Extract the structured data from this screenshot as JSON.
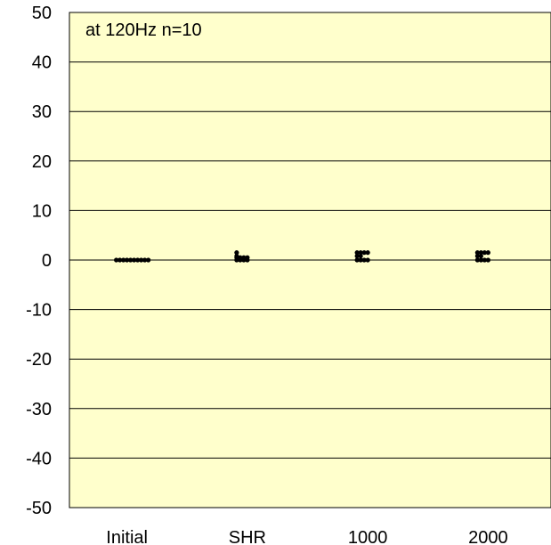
{
  "chart_data": {
    "type": "scatter",
    "title": "",
    "annotation": "at 120Hz   n=10",
    "xlabel": "",
    "ylabel": "",
    "categories": [
      "Initial",
      "SHR",
      "1000",
      "2000"
    ],
    "ylim": [
      -50,
      50
    ],
    "y_ticks": [
      50,
      40,
      30,
      20,
      10,
      0,
      -10,
      -20,
      -30,
      -40,
      -50
    ],
    "grid": true,
    "colors": {
      "plot_background": "#FFFFCC",
      "marker": "#000000",
      "grid": "#000000"
    },
    "points": [
      {
        "category": "Initial",
        "values": [
          0,
          0,
          0,
          0,
          0,
          0,
          0,
          0,
          0,
          0
        ]
      },
      {
        "category": "SHR",
        "values": [
          1.5,
          0.8,
          0.5,
          0.5,
          0.5,
          0,
          0,
          0,
          0,
          0.5
        ]
      },
      {
        "category": "1000",
        "values": [
          1.5,
          1.5,
          1.5,
          1.5,
          0.8,
          0.8,
          0,
          0,
          0,
          0
        ]
      },
      {
        "category": "2000",
        "values": [
          1.5,
          1.5,
          1.5,
          1.5,
          0.8,
          0.8,
          0,
          0,
          0,
          0
        ]
      }
    ]
  }
}
